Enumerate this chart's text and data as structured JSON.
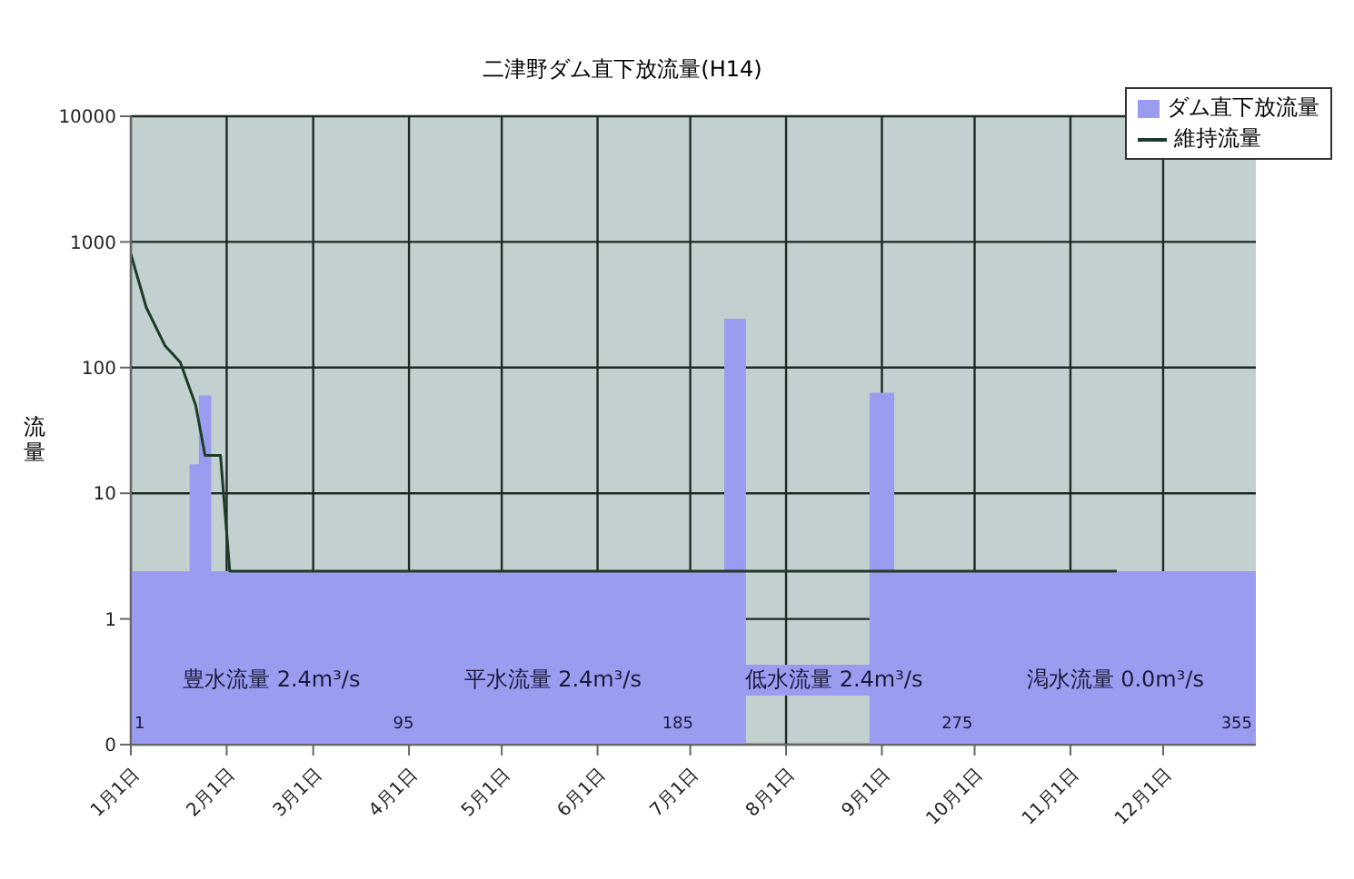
{
  "chart_data": {
    "type": "area",
    "title": "二津野ダム直下放流量(H14)",
    "ylabel": "流量",
    "log": "y",
    "grid": true,
    "legend": "top right",
    "xlim": [
      "--01-01",
      "--12-31"
    ],
    "xticks": [
      {
        "value": "--01-01",
        "label": "1月1日"
      },
      {
        "value": "--02-01",
        "label": "2月1日"
      },
      {
        "value": "--03-01",
        "label": "3月1日"
      },
      {
        "value": "--04-01",
        "label": "4月1日"
      },
      {
        "value": "--05-01",
        "label": "5月1日"
      },
      {
        "value": "--06-01",
        "label": "6月1日"
      },
      {
        "value": "--07-01",
        "label": "7月1日"
      },
      {
        "value": "--08-01",
        "label": "8月1日"
      },
      {
        "value": "--09-01",
        "label": "9月1日"
      },
      {
        "value": "--10-01",
        "label": "10月1日"
      },
      {
        "value": "--11-01",
        "label": "11月1日"
      },
      {
        "value": "--12-01",
        "label": "12月1日"
      }
    ],
    "ylim": [
      0.1,
      10000
    ],
    "yticks": [
      {
        "value": 0.1,
        "label": "0"
      },
      1,
      10,
      100,
      1000,
      10000
    ],
    "series": [
      {
        "name": "ダム直下放流量",
        "color": "#9a9cf0",
        "x": [
          "--01-01",
          "--01-20",
          "--01-23",
          "--01-27",
          "--07-12",
          "--07-19",
          "--07-20",
          "--08-28",
          "--09-05",
          "--12-31"
        ],
        "values": [
          2.4,
          17,
          60,
          2.4,
          245,
          2.4,
          null,
          63,
          2.4,
          2.4
        ]
      },
      {
        "name": "維持流量",
        "type": "line",
        "color": "#1e3a28",
        "x": [
          "--01-01",
          "--01-06",
          "--01-12",
          "--01-17",
          "--01-22",
          "--01-25",
          "--01-30",
          "--02-02",
          "--11-16"
        ],
        "values": [
          800,
          300,
          150,
          110,
          50,
          20,
          20,
          2.4,
          2.4
        ]
      }
    ],
    "annotations": [
      "豊水流量 2.4m³/s",
      "平水流量 2.4m³/s",
      "低水流量 2.4m³/s",
      "渇水流量 0.0m³/s",
      "1",
      "95",
      "185",
      "275",
      "355"
    ]
  }
}
